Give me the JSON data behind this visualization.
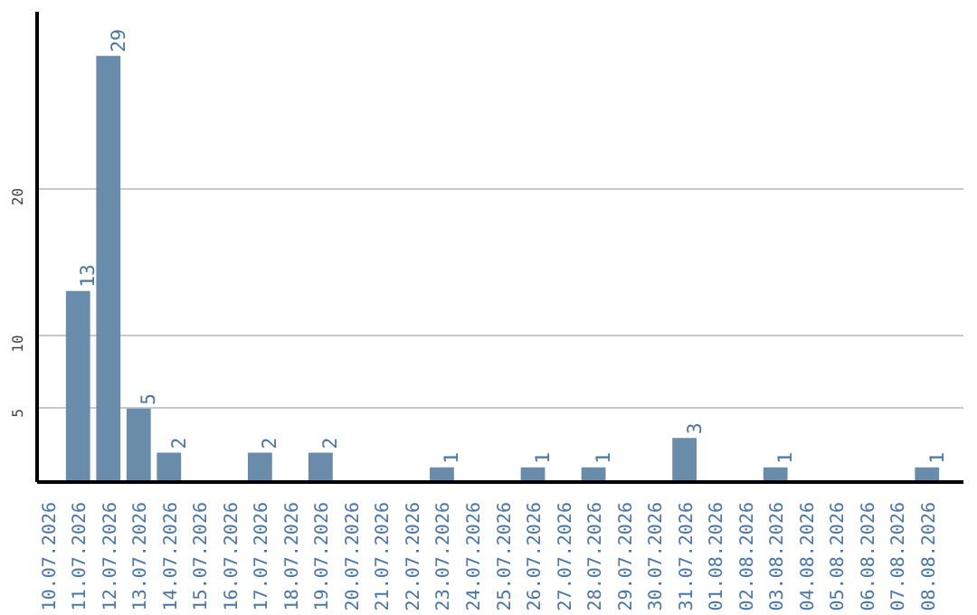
{
  "chart_data": {
    "type": "bar",
    "categories": [
      "10.07.2026",
      "11.07.2026",
      "12.07.2026",
      "13.07.2026",
      "14.07.2026",
      "15.07.2026",
      "16.07.2026",
      "17.07.2026",
      "18.07.2026",
      "19.07.2026",
      "20.07.2026",
      "21.07.2026",
      "22.07.2026",
      "23.07.2026",
      "24.07.2026",
      "25.07.2026",
      "26.07.2026",
      "27.07.2026",
      "28.07.2026",
      "29.07.2026",
      "30.07.2026",
      "31.07.2026",
      "01.08.2026",
      "02.08.2026",
      "03.08.2026",
      "04.08.2026",
      "05.08.2026",
      "06.08.2026",
      "07.08.2026",
      "08.08.2026"
    ],
    "values": [
      0,
      13,
      29,
      5,
      2,
      0,
      0,
      2,
      0,
      2,
      0,
      0,
      0,
      1,
      0,
      0,
      1,
      0,
      1,
      0,
      0,
      3,
      0,
      0,
      1,
      0,
      0,
      0,
      0,
      1
    ],
    "value_labels": [
      null,
      "13",
      "29",
      "5",
      "2",
      null,
      null,
      "2",
      null,
      "2",
      null,
      null,
      null,
      "1",
      null,
      null,
      "1",
      null,
      "1",
      null,
      null,
      "3",
      null,
      null,
      "1",
      null,
      null,
      null,
      null,
      "1"
    ],
    "color": "#6a8cab",
    "ylim": [
      0,
      32
    ],
    "yticks": [
      5,
      10,
      20
    ],
    "grid": "y"
  }
}
